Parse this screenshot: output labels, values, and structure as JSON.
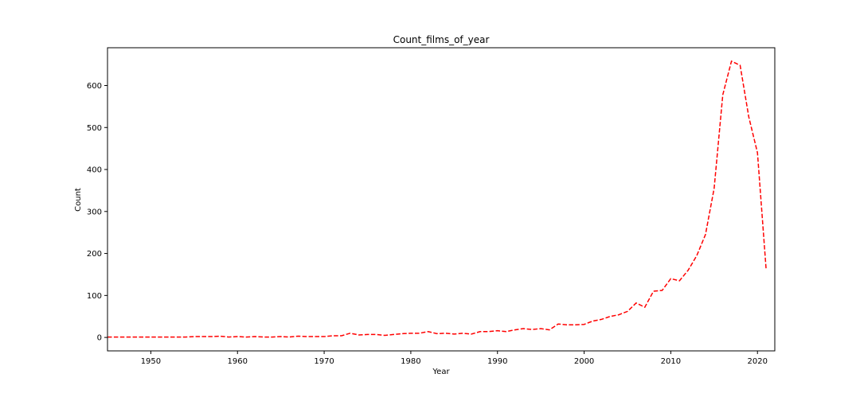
{
  "chart_data": {
    "type": "line",
    "title": "Count_films_of_year",
    "xlabel": "Year",
    "ylabel": "Count",
    "xlim": [
      1945,
      2022
    ],
    "ylim": [
      -32,
      690
    ],
    "grid": false,
    "xticks": [
      1950,
      1960,
      1970,
      1980,
      1990,
      2000,
      2010,
      2020
    ],
    "yticks": [
      0,
      100,
      200,
      300,
      400,
      500,
      600
    ],
    "series": [
      {
        "color": "#ff0000",
        "line_style": "dashed",
        "x": [
          1945,
          1946,
          1947,
          1948,
          1949,
          1950,
          1951,
          1952,
          1953,
          1954,
          1955,
          1956,
          1957,
          1958,
          1959,
          1960,
          1961,
          1962,
          1963,
          1964,
          1965,
          1966,
          1967,
          1968,
          1969,
          1970,
          1971,
          1972,
          1973,
          1974,
          1975,
          1976,
          1977,
          1978,
          1979,
          1980,
          1981,
          1982,
          1983,
          1984,
          1985,
          1986,
          1987,
          1988,
          1989,
          1990,
          1991,
          1992,
          1993,
          1994,
          1995,
          1996,
          1997,
          1998,
          1999,
          2000,
          2001,
          2002,
          2003,
          2004,
          2005,
          2006,
          2007,
          2008,
          2009,
          2010,
          2011,
          2012,
          2013,
          2014,
          2015,
          2016,
          2017,
          2018,
          2019,
          2020,
          2021
        ],
        "y": [
          1,
          1,
          1,
          1,
          1,
          1,
          1,
          1,
          1,
          1,
          2,
          2,
          2,
          3,
          1,
          2,
          1,
          2,
          1,
          1,
          2,
          1,
          3,
          2,
          2,
          2,
          4,
          4,
          10,
          6,
          7,
          7,
          5,
          7,
          9,
          10,
          10,
          14,
          9,
          10,
          8,
          10,
          8,
          14,
          14,
          16,
          14,
          18,
          21,
          19,
          21,
          18,
          32,
          30,
          30,
          31,
          39,
          43,
          50,
          54,
          62,
          82,
          72,
          110,
          112,
          140,
          135,
          160,
          195,
          245,
          355,
          578,
          658,
          648,
          525,
          440,
          162
        ]
      }
    ]
  }
}
